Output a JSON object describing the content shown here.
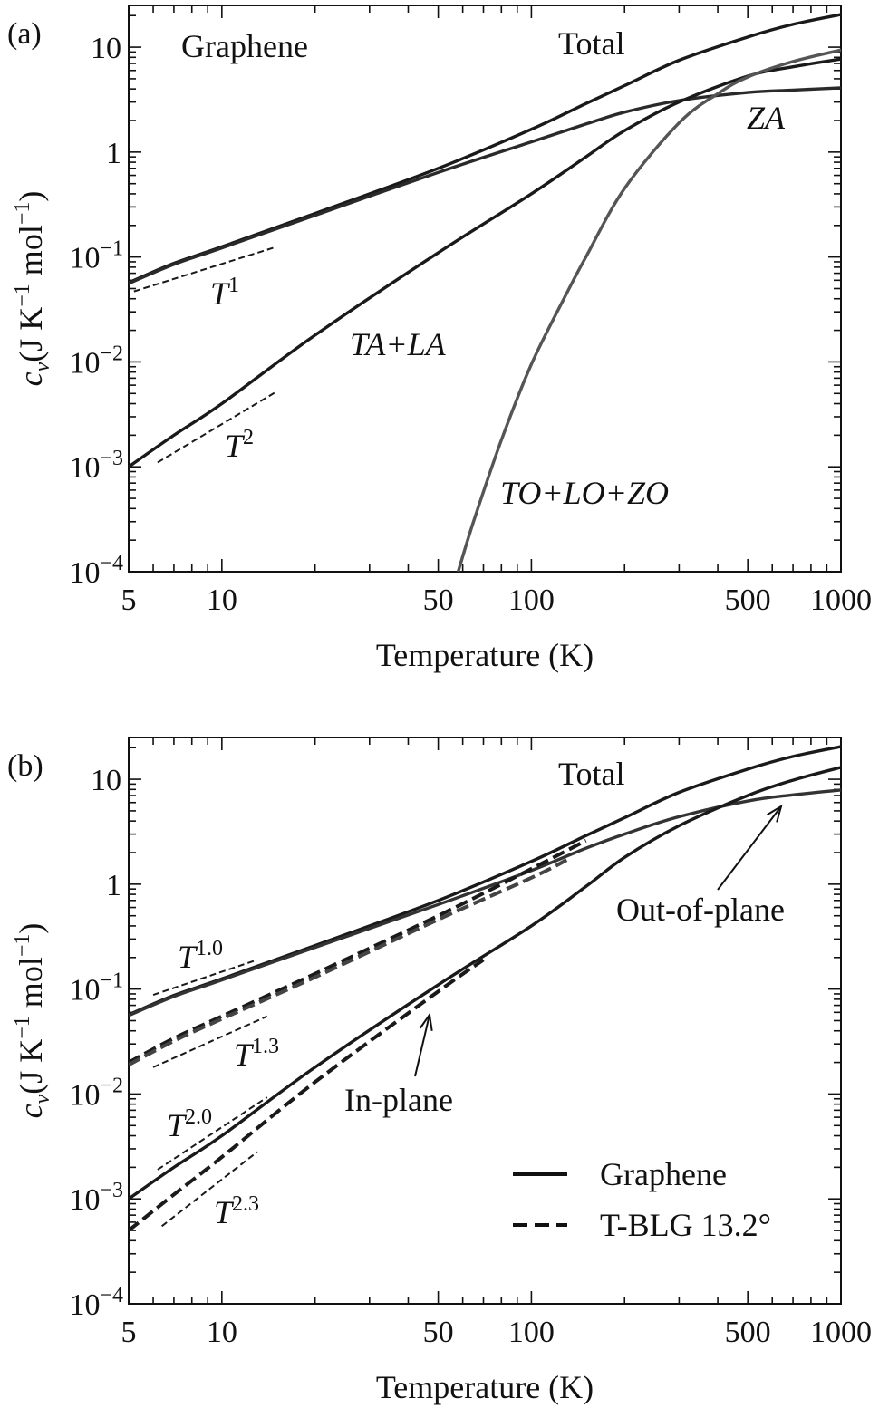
{
  "chart_data": [
    {
      "type": "line",
      "panel_label": "(a)",
      "xlabel": "Temperature (K)",
      "ylabel_symbol": "c",
      "ylabel_sub": "v",
      "ylabel_units_a": "(J K",
      "ylabel_units_b": " mol",
      "ylabel_units_c": ")",
      "ylabel_exp": "−1",
      "x_scale": "log",
      "y_scale": "log",
      "xlim": [
        5,
        1000
      ],
      "ylim": [
        0.0001,
        25
      ],
      "xticks": [
        5,
        10,
        50,
        100,
        500,
        1000
      ],
      "xtick_labels": [
        "5",
        "10",
        "50",
        "100",
        "500",
        "1000"
      ],
      "yticks": [
        0.0001,
        0.001,
        0.01,
        0.1,
        1,
        10
      ],
      "ytick_labels": [
        {
          "base": "10",
          "exp": "−4"
        },
        {
          "base": "10",
          "exp": "−3"
        },
        {
          "base": "10",
          "exp": "−2"
        },
        {
          "base": "10",
          "exp": "−1"
        },
        {
          "base": "1",
          "exp": ""
        },
        {
          "base": "10",
          "exp": ""
        }
      ],
      "annotations": {
        "material": "Graphene",
        "total": "Total",
        "za": "ZA",
        "ta_la": "TA+LA",
        "optical": "TO+LO+ZO",
        "t1": {
          "base": "T",
          "exp": "1"
        },
        "t2": {
          "base": "T",
          "exp": "2"
        }
      },
      "series": [
        {
          "name": "Total",
          "style": "solid",
          "color": "#1a1a1a",
          "x": [
            5,
            7,
            10,
            20,
            50,
            100,
            150,
            200,
            300,
            500,
            700,
            1000
          ],
          "y": [
            0.057,
            0.087,
            0.125,
            0.26,
            0.7,
            1.65,
            2.9,
            4.3,
            7.5,
            12.5,
            16.5,
            20.5
          ]
        },
        {
          "name": "ZA",
          "style": "solid",
          "color": "#2a2a2a",
          "x": [
            5,
            7,
            10,
            20,
            50,
            100,
            150,
            200,
            300,
            500,
            700,
            1000
          ],
          "y": [
            0.056,
            0.085,
            0.122,
            0.25,
            0.64,
            1.25,
            1.85,
            2.4,
            3.1,
            3.7,
            3.9,
            4.1
          ]
        },
        {
          "name": "TA+LA",
          "style": "solid",
          "color": "#1a1a1a",
          "x": [
            5,
            7,
            10,
            20,
            50,
            100,
            150,
            200,
            300,
            500,
            700,
            1000
          ],
          "y": [
            0.001,
            0.002,
            0.004,
            0.018,
            0.11,
            0.4,
            0.9,
            1.6,
            3.0,
            5.3,
            6.5,
            7.7
          ]
        },
        {
          "name": "TO+LO+ZO",
          "style": "solid",
          "color": "#555555",
          "x": [
            58,
            65,
            80,
            100,
            130,
            150,
            200,
            300,
            400,
            500,
            700,
            1000
          ],
          "y": [
            0.0001,
            0.0003,
            0.0018,
            0.0095,
            0.045,
            0.1,
            0.45,
            1.9,
            3.6,
            5.2,
            7.3,
            9.4
          ]
        },
        {
          "name": "T1 guide",
          "style": "dashed",
          "color": "#1a1a1a",
          "x": [
            5.2,
            15
          ],
          "y": [
            0.047,
            0.125
          ]
        },
        {
          "name": "T2 guide",
          "style": "dashed",
          "color": "#1a1a1a",
          "x": [
            6.2,
            15
          ],
          "y": [
            0.0011,
            0.0052
          ]
        }
      ]
    },
    {
      "type": "line",
      "panel_label": "(b)",
      "xlabel": "Temperature (K)",
      "ylabel_symbol": "c",
      "ylabel_sub": "v",
      "ylabel_units_a": "(J K",
      "ylabel_units_b": " mol",
      "ylabel_units_c": ")",
      "ylabel_exp": "−1",
      "x_scale": "log",
      "y_scale": "log",
      "xlim": [
        5,
        1000
      ],
      "ylim": [
        0.0001,
        25
      ],
      "xticks": [
        5,
        10,
        50,
        100,
        500,
        1000
      ],
      "xtick_labels": [
        "5",
        "10",
        "50",
        "100",
        "500",
        "1000"
      ],
      "yticks": [
        0.0001,
        0.001,
        0.01,
        0.1,
        1,
        10
      ],
      "ytick_labels": [
        {
          "base": "10",
          "exp": "−4"
        },
        {
          "base": "10",
          "exp": "−3"
        },
        {
          "base": "10",
          "exp": "−2"
        },
        {
          "base": "10",
          "exp": "−1"
        },
        {
          "base": "1",
          "exp": ""
        },
        {
          "base": "10",
          "exp": ""
        }
      ],
      "annotations": {
        "total": "Total",
        "out_of_plane": "Out-of-plane",
        "in_plane": "In-plane",
        "t10": {
          "base": "T",
          "exp": "1.0"
        },
        "t13": {
          "base": "T",
          "exp": "1.3"
        },
        "t20": {
          "base": "T",
          "exp": "2.0"
        },
        "t23": {
          "base": "T",
          "exp": "2.3"
        }
      },
      "legend": {
        "position": "lower-right",
        "entries": [
          {
            "label": "Graphene",
            "style": "solid"
          },
          {
            "label": "T-BLG 13.2°",
            "style": "dashed"
          }
        ]
      },
      "series": [
        {
          "name": "Graphene total",
          "style": "solid",
          "color": "#1a1a1a",
          "x": [
            5,
            7,
            10,
            20,
            50,
            100,
            150,
            200,
            300,
            500,
            700,
            1000
          ],
          "y": [
            0.057,
            0.087,
            0.125,
            0.26,
            0.7,
            1.65,
            2.9,
            4.3,
            7.5,
            12.5,
            16.5,
            20.5
          ]
        },
        {
          "name": "Graphene out-of-plane",
          "style": "solid",
          "color": "#333333",
          "x": [
            5,
            7,
            10,
            20,
            50,
            100,
            150,
            200,
            300,
            500,
            700,
            1000
          ],
          "y": [
            0.056,
            0.085,
            0.122,
            0.25,
            0.64,
            1.35,
            2.2,
            3.0,
            4.4,
            6.2,
            7.1,
            7.9
          ]
        },
        {
          "name": "Graphene in-plane",
          "style": "solid",
          "color": "#1a1a1a",
          "x": [
            5,
            7,
            10,
            20,
            50,
            100,
            150,
            200,
            300,
            500,
            700,
            1000
          ],
          "y": [
            0.001,
            0.002,
            0.004,
            0.018,
            0.11,
            0.4,
            0.95,
            1.8,
            3.6,
            7.0,
            9.8,
            13.0
          ]
        },
        {
          "name": "T-BLG total",
          "style": "dashed",
          "color": "#1a1a1a",
          "x": [
            5,
            7,
            10,
            20,
            50,
            100,
            150
          ],
          "y": [
            0.02,
            0.034,
            0.055,
            0.14,
            0.5,
            1.4,
            2.6
          ]
        },
        {
          "name": "T-BLG out-of-plane",
          "style": "dashed",
          "color": "#444444",
          "x": [
            5,
            7,
            10,
            20,
            50,
            100,
            130
          ],
          "y": [
            0.019,
            0.032,
            0.052,
            0.13,
            0.46,
            1.15,
            1.7
          ]
        },
        {
          "name": "T-BLG in-plane",
          "style": "dashed",
          "color": "#1a1a1a",
          "x": [
            5,
            7,
            10,
            20,
            50,
            70
          ],
          "y": [
            0.0005,
            0.0011,
            0.0025,
            0.013,
            0.095,
            0.19
          ]
        },
        {
          "name": "T1.0 guide",
          "style": "dashed",
          "color": "#1a1a1a",
          "x": [
            6,
            13
          ],
          "y": [
            0.088,
            0.19
          ]
        },
        {
          "name": "T1.3 guide",
          "style": "dashed",
          "color": "#1a1a1a",
          "x": [
            6,
            14
          ],
          "y": [
            0.018,
            0.055
          ]
        },
        {
          "name": "T2.0 guide",
          "style": "dashed",
          "color": "#1a1a1a",
          "x": [
            6.2,
            14
          ],
          "y": [
            0.0019,
            0.0093
          ]
        },
        {
          "name": "T2.3 guide",
          "style": "dashed",
          "color": "#1a1a1a",
          "x": [
            6.4,
            13
          ],
          "y": [
            0.00055,
            0.0028
          ]
        }
      ]
    }
  ]
}
